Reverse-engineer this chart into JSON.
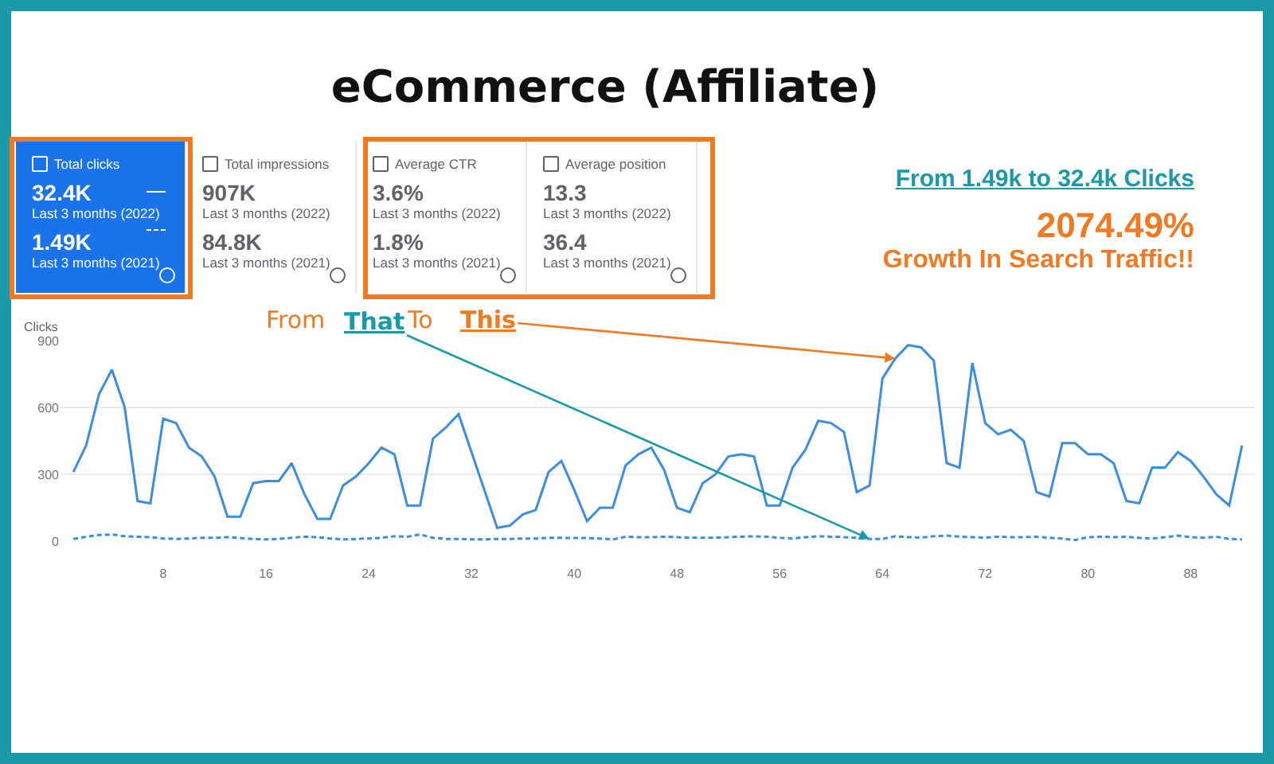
{
  "chart_data": [
    {
      "type": "other",
      "title": "eCommerce (Affiliate)",
      "annotations": [
        "Total clicks",
        "32.4K",
        "Last 3 months (2022)",
        "1.49K",
        "Last 3 months (2021)",
        "Total impressions",
        "907K",
        "Last 3 months (2022)",
        "84.8K",
        "Last 3 months (2021)",
        "Average CTR",
        "3.6%",
        "Last 3 months (2022)",
        "1.8%",
        "Last 3 months (2021)",
        "Average position",
        "13.3",
        "Last 3 months (2022)",
        "36.4",
        "Last 3 months (2021)",
        "From 1.49k to 32.4k Clicks",
        "2074.49%",
        "Growth In Search Traffic!!"
      ]
    },
    {
      "type": "line",
      "ylabel": "Clicks",
      "xlim": [
        0,
        93
      ],
      "xticks": [
        8,
        16,
        24,
        32,
        40,
        48,
        56,
        64,
        72,
        80,
        88
      ],
      "ylim": [
        0,
        900
      ],
      "yticks": [
        0,
        300,
        600,
        900
      ],
      "grid": "y",
      "legend": false,
      "marker": "none",
      "x": [
        1,
        2,
        3,
        4,
        5,
        6,
        7,
        8,
        9,
        10,
        11,
        12,
        13,
        14,
        15,
        16,
        17,
        18,
        19,
        20,
        21,
        22,
        23,
        24,
        25,
        26,
        27,
        28,
        29,
        30,
        31,
        32,
        33,
        34,
        35,
        36,
        37,
        38,
        39,
        40,
        41,
        42,
        43,
        44,
        45,
        46,
        47,
        48,
        49,
        50,
        51,
        52,
        53,
        54,
        55,
        56,
        57,
        58,
        59,
        60,
        61,
        62,
        63,
        64,
        65,
        66,
        67,
        68,
        69,
        70,
        71,
        72,
        73,
        74,
        75,
        76,
        77,
        78,
        79,
        80,
        81,
        82,
        83,
        84,
        85,
        86,
        87,
        88,
        89,
        90,
        91,
        92
      ],
      "series": [
        {
          "color": "#3c8ce0",
          "line_style": "solid",
          "values": [
            310,
            430,
            660,
            770,
            600,
            180,
            170,
            550,
            530,
            420,
            380,
            290,
            110,
            110,
            260,
            270,
            270,
            350,
            210,
            100,
            100,
            250,
            290,
            350,
            420,
            390,
            160,
            160,
            460,
            510,
            570,
            400,
            230,
            60,
            70,
            120,
            140,
            310,
            360,
            230,
            90,
            150,
            150,
            340,
            390,
            420,
            320,
            150,
            130,
            260,
            300,
            380,
            390,
            380,
            160,
            160,
            330,
            410,
            540,
            530,
            490,
            220,
            250,
            730,
            820,
            880,
            870,
            810,
            350,
            330,
            800,
            530,
            480,
            500,
            450,
            220,
            200,
            440,
            440,
            390,
            390,
            350,
            180,
            170,
            330,
            330,
            400,
            360,
            290,
            210,
            160,
            430
          ]
        },
        {
          "color": "#3c8ce0",
          "line_style": "dashed",
          "values": [
            10,
            20,
            28,
            30,
            22,
            20,
            18,
            12,
            10,
            12,
            15,
            15,
            18,
            14,
            10,
            8,
            10,
            15,
            20,
            18,
            12,
            8,
            10,
            12,
            15,
            22,
            20,
            30,
            15,
            10,
            10,
            8,
            8,
            10,
            10,
            12,
            12,
            15,
            15,
            14,
            14,
            12,
            8,
            20,
            18,
            18,
            20,
            18,
            16,
            15,
            16,
            18,
            20,
            22,
            20,
            15,
            12,
            18,
            22,
            20,
            18,
            15,
            10,
            10,
            22,
            18,
            16,
            22,
            25,
            20,
            18,
            16,
            20,
            18,
            18,
            20,
            15,
            12,
            5,
            18,
            20,
            18,
            20,
            15,
            12,
            18,
            25,
            18,
            15,
            20,
            10,
            8
          ]
        }
      ],
      "annotations": [
        "From",
        {
          "text": "That",
          "x": 63,
          "y": 10
        },
        "To",
        {
          "text": "This",
          "x": 65,
          "y": 820
        }
      ]
    }
  ]
}
